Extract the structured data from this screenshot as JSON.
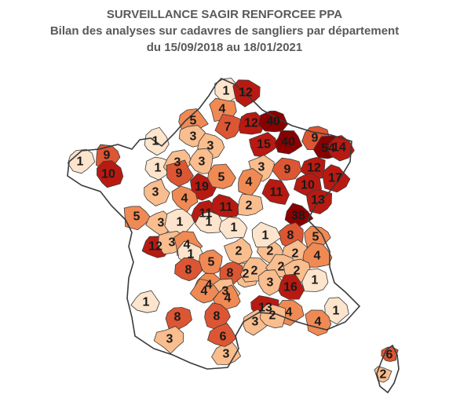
{
  "title": {
    "line1": "SURVEILLANCE SAGIR RENFORCEE PPA",
    "line2": "Bilan des analyses sur cadavres de sangliers par département",
    "line3": "du 15/09/2018 au 18/01/2021"
  },
  "colors": {
    "zero": "#ffffff",
    "c1": "#fde4cc",
    "c2_3": "#f9bd8e",
    "c4_5": "#f08a54",
    "c6_9": "#dd5633",
    "c10_19": "#b81a12",
    "c20_plus": "#8a0000",
    "outline": "#3a3a3a"
  },
  "departments": [
    {
      "id": "59",
      "count": "1"
    },
    {
      "id": "62",
      "count": "12"
    },
    {
      "id": "80",
      "count": "4"
    },
    {
      "id": "76",
      "count": "5"
    },
    {
      "id": "02",
      "count": "7"
    },
    {
      "id": "08",
      "count": "12"
    },
    {
      "id": "55",
      "count": "40"
    },
    {
      "id": "57",
      "count": "9"
    },
    {
      "id": "51",
      "count": "15"
    },
    {
      "id": "54",
      "count": "40"
    },
    {
      "id": "67",
      "count": "54"
    },
    {
      "id": "68",
      "count": "14"
    },
    {
      "id": "27",
      "count": "3"
    },
    {
      "id": "60",
      "count": "3"
    },
    {
      "id": "50",
      "count": "1"
    },
    {
      "id": "29",
      "count": "1"
    },
    {
      "id": "22",
      "count": "9"
    },
    {
      "id": "56",
      "count": "10"
    },
    {
      "id": "14",
      "count": "1"
    },
    {
      "id": "61",
      "count": "3"
    },
    {
      "id": "78",
      "count": "3"
    },
    {
      "id": "88",
      "count": "12"
    },
    {
      "id": "90",
      "count": "17"
    },
    {
      "id": "10",
      "count": "3"
    },
    {
      "id": "52",
      "count": "9"
    },
    {
      "id": "53",
      "count": "3"
    },
    {
      "id": "72",
      "count": "9"
    },
    {
      "id": "28",
      "count": "19"
    },
    {
      "id": "45",
      "count": "5"
    },
    {
      "id": "89",
      "count": "4"
    },
    {
      "id": "70",
      "count": "10"
    },
    {
      "id": "21",
      "count": "11"
    },
    {
      "id": "25",
      "count": "13"
    },
    {
      "id": "44",
      "count": "5"
    },
    {
      "id": "49",
      "count": "3"
    },
    {
      "id": "37",
      "count": "1"
    },
    {
      "id": "41",
      "count": "4"
    },
    {
      "id": "18",
      "count": "11"
    },
    {
      "id": "58",
      "count": "11"
    },
    {
      "id": "71",
      "count": "2"
    },
    {
      "id": "39",
      "count": "38"
    },
    {
      "id": "85",
      "count": "12"
    },
    {
      "id": "79",
      "count": "3"
    },
    {
      "id": "86",
      "count": "4"
    },
    {
      "id": "36",
      "count": "1"
    },
    {
      "id": "03",
      "count": "1"
    },
    {
      "id": "01",
      "count": "8"
    },
    {
      "id": "74",
      "count": "5"
    },
    {
      "id": "17",
      "count": "1"
    },
    {
      "id": "87",
      "count": "5"
    },
    {
      "id": "23",
      "count": "2"
    },
    {
      "id": "63",
      "count": "2"
    },
    {
      "id": "42",
      "count": "2"
    },
    {
      "id": "69",
      "count": "1"
    },
    {
      "id": "73",
      "count": "4"
    },
    {
      "id": "16",
      "count": "2"
    },
    {
      "id": "24",
      "count": "8"
    },
    {
      "id": "19",
      "count": "8"
    },
    {
      "id": "15",
      "count": "2"
    },
    {
      "id": "43",
      "count": "2"
    },
    {
      "id": "38",
      "count": "2"
    },
    {
      "id": "46",
      "count": "4"
    },
    {
      "id": "48",
      "count": "3"
    },
    {
      "id": "07",
      "count": "3"
    },
    {
      "id": "26",
      "count": "16"
    },
    {
      "id": "05",
      "count": "1"
    },
    {
      "id": "40",
      "count": "1"
    },
    {
      "id": "47",
      "count": "8"
    },
    {
      "id": "82",
      "count": "4"
    },
    {
      "id": "12",
      "count": "4"
    },
    {
      "id": "30",
      "count": "13"
    },
    {
      "id": "84",
      "count": "4"
    },
    {
      "id": "04",
      "count": "1"
    },
    {
      "id": "32",
      "count": "8"
    },
    {
      "id": "81",
      "count": "3"
    },
    {
      "id": "34",
      "count": "3"
    },
    {
      "id": "13",
      "count": "4"
    },
    {
      "id": "64",
      "count": "3"
    },
    {
      "id": "31",
      "count": "6"
    },
    {
      "id": "11",
      "count": "2"
    },
    {
      "id": "2B",
      "count": "6"
    },
    {
      "id": "2A",
      "count": "2"
    }
  ]
}
